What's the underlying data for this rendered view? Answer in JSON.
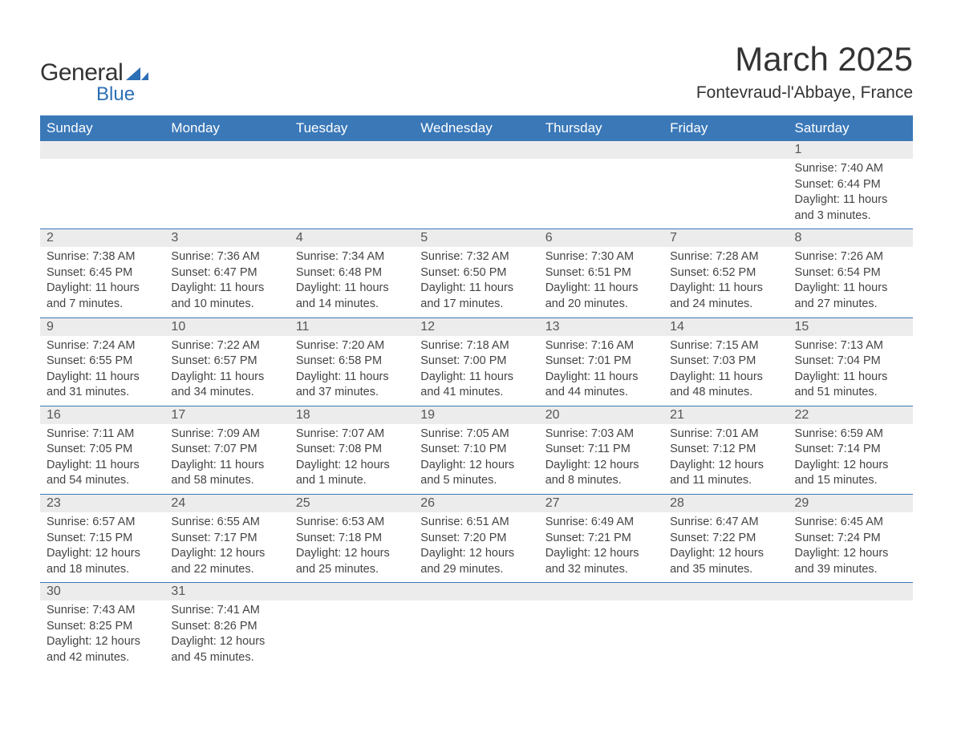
{
  "logo": {
    "text_general": "General",
    "text_blue": "Blue",
    "color_blue": "#2c6fb5",
    "color_dark": "#333333"
  },
  "title": "March 2025",
  "subtitle": "Fontevraud-l'Abbaye, France",
  "weekdays": [
    "Sunday",
    "Monday",
    "Tuesday",
    "Wednesday",
    "Thursday",
    "Friday",
    "Saturday"
  ],
  "colors": {
    "header_bg": "#3a78b8",
    "header_fg": "#ffffff",
    "daynum_bg": "#ececec",
    "daynum_fg": "#555555",
    "body_fg": "#444444",
    "row_border": "#3a78b8",
    "page_bg": "#ffffff"
  },
  "fonts": {
    "title_pt": 42,
    "subtitle_pt": 21,
    "weekday_pt": 17,
    "daynum_pt": 16,
    "body_pt": 14.5
  },
  "layout": {
    "columns": 7,
    "rows": 6,
    "leading_blanks": 6
  },
  "days": [
    {
      "n": "1",
      "sunrise": "Sunrise: 7:40 AM",
      "sunset": "Sunset: 6:44 PM",
      "daylight1": "Daylight: 11 hours",
      "daylight2": "and 3 minutes."
    },
    {
      "n": "2",
      "sunrise": "Sunrise: 7:38 AM",
      "sunset": "Sunset: 6:45 PM",
      "daylight1": "Daylight: 11 hours",
      "daylight2": "and 7 minutes."
    },
    {
      "n": "3",
      "sunrise": "Sunrise: 7:36 AM",
      "sunset": "Sunset: 6:47 PM",
      "daylight1": "Daylight: 11 hours",
      "daylight2": "and 10 minutes."
    },
    {
      "n": "4",
      "sunrise": "Sunrise: 7:34 AM",
      "sunset": "Sunset: 6:48 PM",
      "daylight1": "Daylight: 11 hours",
      "daylight2": "and 14 minutes."
    },
    {
      "n": "5",
      "sunrise": "Sunrise: 7:32 AM",
      "sunset": "Sunset: 6:50 PM",
      "daylight1": "Daylight: 11 hours",
      "daylight2": "and 17 minutes."
    },
    {
      "n": "6",
      "sunrise": "Sunrise: 7:30 AM",
      "sunset": "Sunset: 6:51 PM",
      "daylight1": "Daylight: 11 hours",
      "daylight2": "and 20 minutes."
    },
    {
      "n": "7",
      "sunrise": "Sunrise: 7:28 AM",
      "sunset": "Sunset: 6:52 PM",
      "daylight1": "Daylight: 11 hours",
      "daylight2": "and 24 minutes."
    },
    {
      "n": "8",
      "sunrise": "Sunrise: 7:26 AM",
      "sunset": "Sunset: 6:54 PM",
      "daylight1": "Daylight: 11 hours",
      "daylight2": "and 27 minutes."
    },
    {
      "n": "9",
      "sunrise": "Sunrise: 7:24 AM",
      "sunset": "Sunset: 6:55 PM",
      "daylight1": "Daylight: 11 hours",
      "daylight2": "and 31 minutes."
    },
    {
      "n": "10",
      "sunrise": "Sunrise: 7:22 AM",
      "sunset": "Sunset: 6:57 PM",
      "daylight1": "Daylight: 11 hours",
      "daylight2": "and 34 minutes."
    },
    {
      "n": "11",
      "sunrise": "Sunrise: 7:20 AM",
      "sunset": "Sunset: 6:58 PM",
      "daylight1": "Daylight: 11 hours",
      "daylight2": "and 37 minutes."
    },
    {
      "n": "12",
      "sunrise": "Sunrise: 7:18 AM",
      "sunset": "Sunset: 7:00 PM",
      "daylight1": "Daylight: 11 hours",
      "daylight2": "and 41 minutes."
    },
    {
      "n": "13",
      "sunrise": "Sunrise: 7:16 AM",
      "sunset": "Sunset: 7:01 PM",
      "daylight1": "Daylight: 11 hours",
      "daylight2": "and 44 minutes."
    },
    {
      "n": "14",
      "sunrise": "Sunrise: 7:15 AM",
      "sunset": "Sunset: 7:03 PM",
      "daylight1": "Daylight: 11 hours",
      "daylight2": "and 48 minutes."
    },
    {
      "n": "15",
      "sunrise": "Sunrise: 7:13 AM",
      "sunset": "Sunset: 7:04 PM",
      "daylight1": "Daylight: 11 hours",
      "daylight2": "and 51 minutes."
    },
    {
      "n": "16",
      "sunrise": "Sunrise: 7:11 AM",
      "sunset": "Sunset: 7:05 PM",
      "daylight1": "Daylight: 11 hours",
      "daylight2": "and 54 minutes."
    },
    {
      "n": "17",
      "sunrise": "Sunrise: 7:09 AM",
      "sunset": "Sunset: 7:07 PM",
      "daylight1": "Daylight: 11 hours",
      "daylight2": "and 58 minutes."
    },
    {
      "n": "18",
      "sunrise": "Sunrise: 7:07 AM",
      "sunset": "Sunset: 7:08 PM",
      "daylight1": "Daylight: 12 hours",
      "daylight2": "and 1 minute."
    },
    {
      "n": "19",
      "sunrise": "Sunrise: 7:05 AM",
      "sunset": "Sunset: 7:10 PM",
      "daylight1": "Daylight: 12 hours",
      "daylight2": "and 5 minutes."
    },
    {
      "n": "20",
      "sunrise": "Sunrise: 7:03 AM",
      "sunset": "Sunset: 7:11 PM",
      "daylight1": "Daylight: 12 hours",
      "daylight2": "and 8 minutes."
    },
    {
      "n": "21",
      "sunrise": "Sunrise: 7:01 AM",
      "sunset": "Sunset: 7:12 PM",
      "daylight1": "Daylight: 12 hours",
      "daylight2": "and 11 minutes."
    },
    {
      "n": "22",
      "sunrise": "Sunrise: 6:59 AM",
      "sunset": "Sunset: 7:14 PM",
      "daylight1": "Daylight: 12 hours",
      "daylight2": "and 15 minutes."
    },
    {
      "n": "23",
      "sunrise": "Sunrise: 6:57 AM",
      "sunset": "Sunset: 7:15 PM",
      "daylight1": "Daylight: 12 hours",
      "daylight2": "and 18 minutes."
    },
    {
      "n": "24",
      "sunrise": "Sunrise: 6:55 AM",
      "sunset": "Sunset: 7:17 PM",
      "daylight1": "Daylight: 12 hours",
      "daylight2": "and 22 minutes."
    },
    {
      "n": "25",
      "sunrise": "Sunrise: 6:53 AM",
      "sunset": "Sunset: 7:18 PM",
      "daylight1": "Daylight: 12 hours",
      "daylight2": "and 25 minutes."
    },
    {
      "n": "26",
      "sunrise": "Sunrise: 6:51 AM",
      "sunset": "Sunset: 7:20 PM",
      "daylight1": "Daylight: 12 hours",
      "daylight2": "and 29 minutes."
    },
    {
      "n": "27",
      "sunrise": "Sunrise: 6:49 AM",
      "sunset": "Sunset: 7:21 PM",
      "daylight1": "Daylight: 12 hours",
      "daylight2": "and 32 minutes."
    },
    {
      "n": "28",
      "sunrise": "Sunrise: 6:47 AM",
      "sunset": "Sunset: 7:22 PM",
      "daylight1": "Daylight: 12 hours",
      "daylight2": "and 35 minutes."
    },
    {
      "n": "29",
      "sunrise": "Sunrise: 6:45 AM",
      "sunset": "Sunset: 7:24 PM",
      "daylight1": "Daylight: 12 hours",
      "daylight2": "and 39 minutes."
    },
    {
      "n": "30",
      "sunrise": "Sunrise: 7:43 AM",
      "sunset": "Sunset: 8:25 PM",
      "daylight1": "Daylight: 12 hours",
      "daylight2": "and 42 minutes."
    },
    {
      "n": "31",
      "sunrise": "Sunrise: 7:41 AM",
      "sunset": "Sunset: 8:26 PM",
      "daylight1": "Daylight: 12 hours",
      "daylight2": "and 45 minutes."
    }
  ]
}
